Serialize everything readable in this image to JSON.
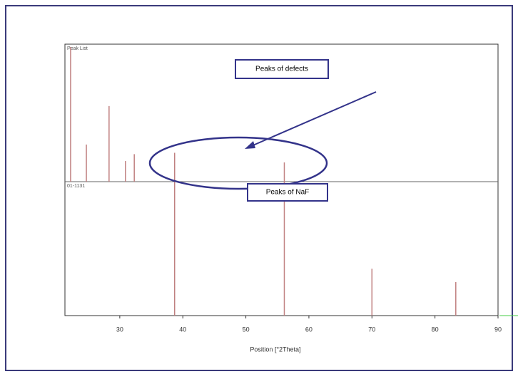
{
  "chart_data": {
    "type": "stick",
    "x_label": "Position [°2Theta]",
    "xlim": [
      21.3,
      90
    ],
    "xticks": [
      30,
      40,
      50,
      60,
      70,
      80,
      90
    ],
    "ylim": [
      0,
      100
    ],
    "series": [
      {
        "name": "Peak List",
        "color": "#c08080",
        "x": [
          22.2,
          24.7,
          28.3,
          30.9,
          32.3,
          38.7,
          56.1
        ],
        "values": [
          98,
          27,
          55,
          15,
          20,
          21,
          14
        ]
      },
      {
        "name": "01-1131",
        "color": "#c08080",
        "x": [
          38.7,
          56.1,
          70.0,
          83.3
        ],
        "values": [
          100,
          100,
          35,
          25
        ]
      }
    ],
    "annotations": [
      "Peaks of defects",
      "Peaks of NaF"
    ]
  }
}
